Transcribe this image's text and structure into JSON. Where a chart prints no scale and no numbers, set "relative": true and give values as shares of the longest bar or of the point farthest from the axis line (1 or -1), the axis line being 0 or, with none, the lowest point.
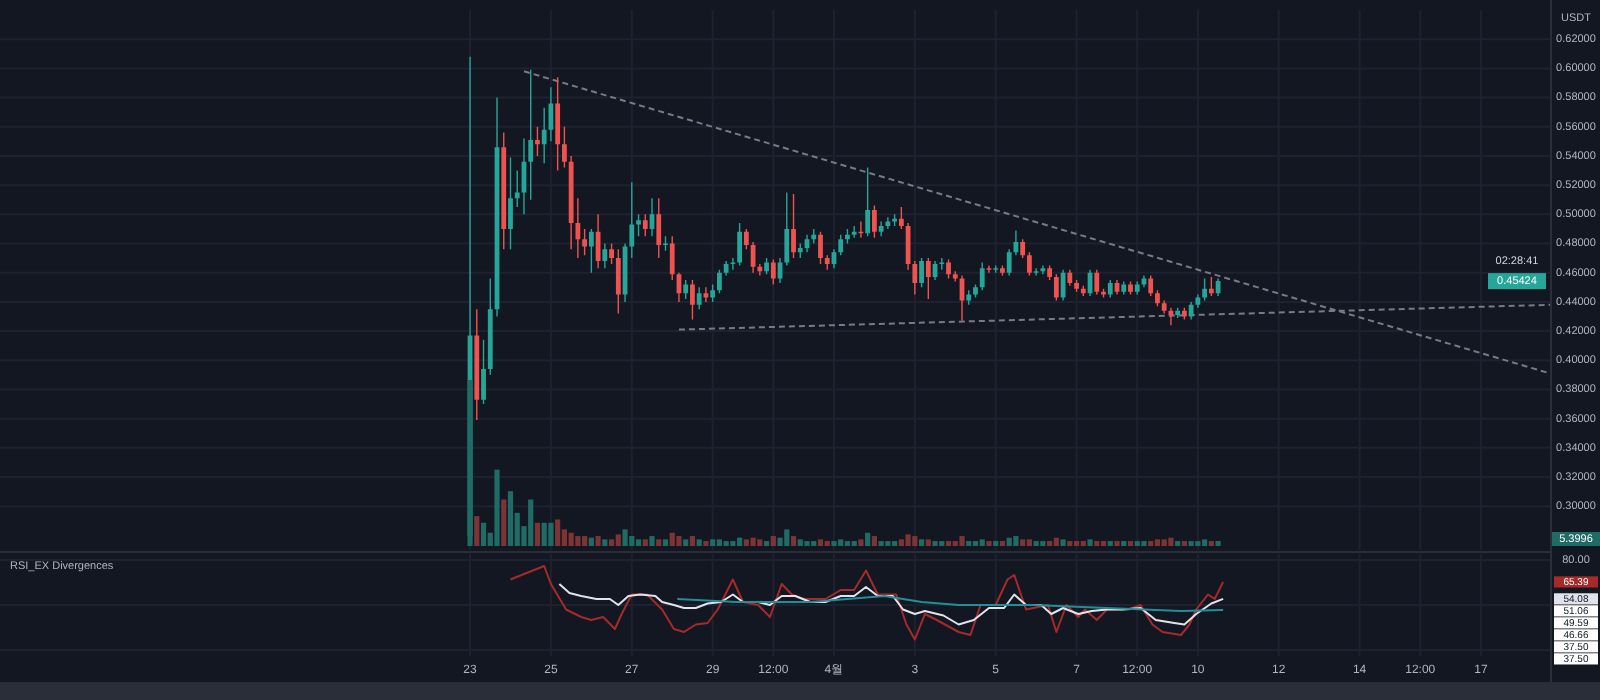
{
  "chart_data": [
    {
      "type": "candlestick",
      "ylabel": "USDT",
      "xlim": [
        "--03-11T09:00",
        "--04-18T17:00"
      ],
      "ylim": [
        0.27,
        0.64
      ],
      "yticks": [
        {
          "value": 0.3,
          "label": "0.30000"
        },
        {
          "value": 0.32,
          "label": "0.32000"
        },
        {
          "value": 0.34,
          "label": "0.34000"
        },
        {
          "value": 0.36,
          "label": "0.36000"
        },
        {
          "value": 0.38,
          "label": "0.38000"
        },
        {
          "value": 0.4,
          "label": "0.40000"
        },
        {
          "value": 0.42,
          "label": "0.42000"
        },
        {
          "value": 0.44,
          "label": "0.44000"
        },
        {
          "value": 0.46,
          "label": "0.46000"
        },
        {
          "value": 0.48,
          "label": "0.48000"
        },
        {
          "value": 0.5,
          "label": "0.50000"
        },
        {
          "value": 0.52,
          "label": "0.52000"
        },
        {
          "value": 0.54,
          "label": "0.54000"
        },
        {
          "value": 0.56,
          "label": "0.56000"
        },
        {
          "value": 0.58,
          "label": "0.58000"
        },
        {
          "value": 0.6,
          "label": "0.60000"
        },
        {
          "value": 0.62,
          "label": "0.62000"
        }
      ],
      "xticks": [
        "--03-23",
        "--03-25",
        "--03-27",
        "--03-29",
        "--03-30T12:00",
        "--04-01",
        "--04-03",
        "--04-05",
        "--04-07",
        "--04-08T12:00",
        "--04-10",
        "--04-12",
        "--04-14",
        "--04-15T12:00",
        "--04-17"
      ],
      "tick_labels": "y",
      "grid": true,
      "x": [
        "--03-23T00:00",
        "--03-23T04:00",
        "--03-23T08:00",
        "--03-23T12:00",
        "--03-23T16:00",
        "--03-23T20:00",
        "--03-24T00:00",
        "--03-24T04:00",
        "--03-24T08:00",
        "--03-24T12:00",
        "--03-24T16:00",
        "--03-24T20:00",
        "--03-25T00:00",
        "--03-25T04:00",
        "--03-25T08:00",
        "--03-25T12:00",
        "--03-25T16:00",
        "--03-25T20:00",
        "--03-26T00:00",
        "--03-26T04:00",
        "--03-26T08:00",
        "--03-26T12:00",
        "--03-26T16:00",
        "--03-26T20:00",
        "--03-27T00:00",
        "--03-27T04:00",
        "--03-27T08:00",
        "--03-27T12:00",
        "--03-27T16:00",
        "--03-27T20:00",
        "--03-28T00:00",
        "--03-28T04:00",
        "--03-28T08:00",
        "--03-28T12:00",
        "--03-28T16:00",
        "--03-28T20:00",
        "--03-29T00:00",
        "--03-29T04:00",
        "--03-29T08:00",
        "--03-29T12:00",
        "--03-29T16:00",
        "--03-29T20:00",
        "--03-30T00:00",
        "--03-30T04:00",
        "--03-30T08:00",
        "--03-30T12:00",
        "--03-30T16:00",
        "--03-30T20:00",
        "--03-31T00:00",
        "--03-31T04:00",
        "--03-31T08:00",
        "--03-31T12:00",
        "--03-31T16:00",
        "--03-31T20:00",
        "--04-01T00:00",
        "--04-01T04:00",
        "--04-01T08:00",
        "--04-01T12:00",
        "--04-01T16:00",
        "--04-01T20:00",
        "--04-02T00:00",
        "--04-02T04:00",
        "--04-02T08:00",
        "--04-02T12:00",
        "--04-02T16:00",
        "--04-02T20:00",
        "--04-03T00:00",
        "--04-03T04:00",
        "--04-03T08:00",
        "--04-03T12:00",
        "--04-03T16:00",
        "--04-03T20:00",
        "--04-04T00:00",
        "--04-04T04:00",
        "--04-04T08:00",
        "--04-04T12:00",
        "--04-04T16:00",
        "--04-04T20:00",
        "--04-05T00:00",
        "--04-05T04:00",
        "--04-05T08:00",
        "--04-05T12:00",
        "--04-05T16:00",
        "--04-05T20:00",
        "--04-06T00:00",
        "--04-06T04:00",
        "--04-06T08:00",
        "--04-06T12:00",
        "--04-06T16:00",
        "--04-06T20:00",
        "--04-07T00:00",
        "--04-07T04:00",
        "--04-07T08:00",
        "--04-07T12:00",
        "--04-07T16:00",
        "--04-07T20:00",
        "--04-08T00:00",
        "--04-08T04:00",
        "--04-08T08:00",
        "--04-08T12:00",
        "--04-08T16:00",
        "--04-08T20:00",
        "--04-09T00:00",
        "--04-09T04:00",
        "--04-09T08:00",
        "--04-09T12:00",
        "--04-09T16:00",
        "--04-09T20:00",
        "--04-10T00:00",
        "--04-10T04:00",
        "--04-10T08:00",
        "--04-10T12:00"
      ],
      "ohlc": [
        [
          0.28,
          0.608,
          0.277,
          0.417
        ],
        [
          0.417,
          0.435,
          0.359,
          0.373
        ],
        [
          0.373,
          0.414,
          0.37,
          0.394
        ],
        [
          0.394,
          0.456,
          0.39,
          0.435
        ],
        [
          0.435,
          0.58,
          0.43,
          0.546
        ],
        [
          0.546,
          0.556,
          0.476,
          0.49
        ],
        [
          0.49,
          0.539,
          0.476,
          0.511
        ],
        [
          0.511,
          0.53,
          0.505,
          0.515
        ],
        [
          0.515,
          0.552,
          0.5,
          0.536
        ],
        [
          0.536,
          0.599,
          0.51,
          0.551
        ],
        [
          0.551,
          0.56,
          0.54,
          0.548
        ],
        [
          0.548,
          0.573,
          0.535,
          0.558
        ],
        [
          0.558,
          0.587,
          0.55,
          0.576
        ],
        [
          0.576,
          0.594,
          0.53,
          0.548
        ],
        [
          0.548,
          0.56,
          0.532,
          0.536
        ],
        [
          0.536,
          0.54,
          0.476,
          0.494
        ],
        [
          0.494,
          0.511,
          0.47,
          0.483
        ],
        [
          0.483,
          0.49,
          0.472,
          0.478
        ],
        [
          0.478,
          0.49,
          0.46,
          0.488
        ],
        [
          0.488,
          0.5,
          0.463,
          0.468
        ],
        [
          0.468,
          0.48,
          0.463,
          0.476
        ],
        [
          0.476,
          0.48,
          0.466,
          0.47
        ],
        [
          0.47,
          0.476,
          0.432,
          0.445
        ],
        [
          0.445,
          0.48,
          0.44,
          0.478
        ],
        [
          0.478,
          0.522,
          0.47,
          0.493
        ],
        [
          0.493,
          0.5,
          0.485,
          0.496
        ],
        [
          0.496,
          0.5,
          0.485,
          0.49
        ],
        [
          0.49,
          0.511,
          0.485,
          0.5
        ],
        [
          0.5,
          0.511,
          0.47,
          0.479
        ],
        [
          0.479,
          0.485,
          0.475,
          0.48
        ],
        [
          0.48,
          0.485,
          0.455,
          0.459
        ],
        [
          0.459,
          0.46,
          0.44,
          0.446
        ],
        [
          0.446,
          0.455,
          0.442,
          0.452
        ],
        [
          0.452,
          0.455,
          0.428,
          0.438
        ],
        [
          0.438,
          0.45,
          0.435,
          0.446
        ],
        [
          0.446,
          0.45,
          0.44,
          0.443
        ],
        [
          0.443,
          0.452,
          0.44,
          0.448
        ],
        [
          0.448,
          0.462,
          0.446,
          0.46
        ],
        [
          0.46,
          0.468,
          0.458,
          0.466
        ],
        [
          0.466,
          0.47,
          0.462,
          0.467
        ],
        [
          0.467,
          0.494,
          0.465,
          0.488
        ],
        [
          0.488,
          0.49,
          0.476,
          0.479
        ],
        [
          0.479,
          0.481,
          0.46,
          0.464
        ],
        [
          0.464,
          0.466,
          0.458,
          0.461
        ],
        [
          0.461,
          0.47,
          0.459,
          0.467
        ],
        [
          0.467,
          0.469,
          0.452,
          0.456
        ],
        [
          0.456,
          0.47,
          0.453,
          0.467
        ],
        [
          0.467,
          0.515,
          0.465,
          0.49
        ],
        [
          0.49,
          0.514,
          0.47,
          0.474
        ],
        [
          0.474,
          0.48,
          0.47,
          0.477
        ],
        [
          0.477,
          0.486,
          0.474,
          0.483
        ],
        [
          0.483,
          0.49,
          0.48,
          0.486
        ],
        [
          0.486,
          0.488,
          0.466,
          0.47
        ],
        [
          0.47,
          0.472,
          0.462,
          0.466
        ],
        [
          0.466,
          0.476,
          0.463,
          0.474
        ],
        [
          0.474,
          0.486,
          0.472,
          0.483
        ],
        [
          0.483,
          0.49,
          0.48,
          0.486
        ],
        [
          0.486,
          0.492,
          0.484,
          0.488
        ],
        [
          0.488,
          0.495,
          0.484,
          0.487
        ],
        [
          0.487,
          0.532,
          0.485,
          0.503
        ],
        [
          0.503,
          0.506,
          0.484,
          0.488
        ],
        [
          0.488,
          0.495,
          0.485,
          0.492
        ],
        [
          0.492,
          0.498,
          0.49,
          0.495
        ],
        [
          0.495,
          0.5,
          0.492,
          0.497
        ],
        [
          0.497,
          0.505,
          0.49,
          0.492
        ],
        [
          0.492,
          0.494,
          0.462,
          0.466
        ],
        [
          0.466,
          0.468,
          0.445,
          0.453
        ],
        [
          0.453,
          0.47,
          0.45,
          0.468
        ],
        [
          0.468,
          0.47,
          0.442,
          0.457
        ],
        [
          0.457,
          0.468,
          0.455,
          0.466
        ],
        [
          0.466,
          0.47,
          0.462,
          0.467
        ],
        [
          0.467,
          0.469,
          0.456,
          0.459
        ],
        [
          0.459,
          0.461,
          0.454,
          0.456
        ],
        [
          0.456,
          0.458,
          0.427,
          0.441
        ],
        [
          0.441,
          0.448,
          0.438,
          0.445
        ],
        [
          0.445,
          0.452,
          0.443,
          0.45
        ],
        [
          0.45,
          0.467,
          0.448,
          0.463
        ],
        [
          0.463,
          0.465,
          0.46,
          0.462
        ],
        [
          0.462,
          0.465,
          0.46,
          0.463
        ],
        [
          0.463,
          0.465,
          0.458,
          0.46
        ],
        [
          0.46,
          0.476,
          0.458,
          0.474
        ],
        [
          0.474,
          0.489,
          0.472,
          0.481
        ],
        [
          0.481,
          0.483,
          0.47,
          0.472
        ],
        [
          0.472,
          0.474,
          0.458,
          0.46
        ],
        [
          0.46,
          0.463,
          0.458,
          0.461
        ],
        [
          0.461,
          0.465,
          0.459,
          0.463
        ],
        [
          0.463,
          0.465,
          0.455,
          0.457
        ],
        [
          0.457,
          0.459,
          0.441,
          0.443
        ],
        [
          0.443,
          0.462,
          0.441,
          0.46
        ],
        [
          0.46,
          0.462,
          0.451,
          0.453
        ],
        [
          0.453,
          0.455,
          0.447,
          0.449
        ],
        [
          0.449,
          0.451,
          0.444,
          0.446
        ],
        [
          0.446,
          0.462,
          0.444,
          0.46
        ],
        [
          0.46,
          0.462,
          0.445,
          0.447
        ],
        [
          0.447,
          0.449,
          0.443,
          0.445
        ],
        [
          0.445,
          0.455,
          0.443,
          0.453
        ],
        [
          0.453,
          0.455,
          0.445,
          0.447
        ],
        [
          0.447,
          0.454,
          0.445,
          0.452
        ],
        [
          0.452,
          0.454,
          0.445,
          0.447
        ],
        [
          0.447,
          0.454,
          0.445,
          0.452
        ],
        [
          0.452,
          0.458,
          0.45,
          0.456
        ],
        [
          0.456,
          0.458,
          0.444,
          0.446
        ],
        [
          0.446,
          0.448,
          0.437,
          0.439
        ],
        [
          0.439,
          0.441,
          0.432,
          0.434
        ],
        [
          0.434,
          0.436,
          0.424,
          0.431
        ],
        [
          0.431,
          0.436,
          0.429,
          0.434
        ],
        [
          0.434,
          0.436,
          0.428,
          0.43
        ],
        [
          0.43,
          0.44,
          0.428,
          0.438
        ],
        [
          0.438,
          0.445,
          0.436,
          0.443
        ],
        [
          0.443,
          0.456,
          0.441,
          0.449
        ],
        [
          0.449,
          0.457,
          0.444,
          0.446
        ],
        [
          0.446,
          0.456,
          0.444,
          0.45424
        ]
      ],
      "colors": [
        "#26a69a",
        "#ef5350",
        "#26a69a",
        "#26a69a",
        "#26a69a",
        "#ef5350",
        "#26a69a",
        "#26a69a",
        "#26a69a",
        "#26a69a",
        "#ef5350",
        "#26a69a",
        "#26a69a",
        "#ef5350",
        "#ef5350",
        "#ef5350",
        "#ef5350",
        "#ef5350",
        "#26a69a",
        "#ef5350",
        "#26a69a",
        "#ef5350",
        "#ef5350",
        "#26a69a",
        "#26a69a",
        "#26a69a",
        "#ef5350",
        "#26a69a",
        "#ef5350",
        "#26a69a",
        "#ef5350",
        "#ef5350",
        "#26a69a",
        "#ef5350",
        "#26a69a",
        "#ef5350",
        "#26a69a",
        "#26a69a",
        "#26a69a",
        "#26a69a",
        "#26a69a",
        "#ef5350",
        "#ef5350",
        "#ef5350",
        "#26a69a",
        "#ef5350",
        "#26a69a",
        "#26a69a",
        "#ef5350",
        "#26a69a",
        "#26a69a",
        "#26a69a",
        "#ef5350",
        "#ef5350",
        "#26a69a",
        "#26a69a",
        "#26a69a",
        "#26a69a",
        "#ef5350",
        "#26a69a",
        "#ef5350",
        "#26a69a",
        "#26a69a",
        "#26a69a",
        "#ef5350",
        "#ef5350",
        "#ef5350",
        "#26a69a",
        "#ef5350",
        "#26a69a",
        "#26a69a",
        "#ef5350",
        "#ef5350",
        "#ef5350",
        "#26a69a",
        "#26a69a",
        "#26a69a",
        "#ef5350",
        "#26a69a",
        "#ef5350",
        "#26a69a",
        "#26a69a",
        "#ef5350",
        "#ef5350",
        "#26a69a",
        "#26a69a",
        "#ef5350",
        "#ef5350",
        "#26a69a",
        "#ef5350",
        "#ef5350",
        "#ef5350",
        "#26a69a",
        "#ef5350",
        "#ef5350",
        "#26a69a",
        "#ef5350",
        "#26a69a",
        "#ef5350",
        "#26a69a",
        "#26a69a",
        "#ef5350",
        "#ef5350",
        "#ef5350",
        "#ef5350",
        "#26a69a",
        "#ef5350",
        "#26a69a",
        "#26a69a",
        "#26a69a",
        "#ef5350",
        "#26a69a"
      ],
      "series": [
        {
          "type": "line",
          "line_style": "dashed",
          "color": "#787b86",
          "x": [
            "--03-24T08:00",
            "--04-18T17:00"
          ],
          "values": [
            0.598,
            0.391
          ]
        },
        {
          "type": "line",
          "line_style": "dashed",
          "color": "#787b86",
          "x": [
            "--03-28T04:00",
            "--04-18T17:00"
          ],
          "values": [
            0.421,
            0.438
          ]
        }
      ],
      "annotations": [
        "0.45424",
        "02:28:41"
      ]
    },
    {
      "type": "bar",
      "relative": true,
      "xlim": [
        "--03-11T09:00",
        "--04-18T17:00"
      ],
      "tick_labels": false,
      "x": [
        "--03-23T00:00",
        "--03-23T04:00",
        "--03-23T08:00",
        "--03-23T12:00",
        "--03-23T16:00",
        "--03-23T20:00",
        "--03-24T00:00",
        "--03-24T04:00",
        "--03-24T08:00",
        "--03-24T12:00",
        "--03-24T16:00",
        "--03-24T20:00",
        "--03-25T00:00",
        "--03-25T04:00",
        "--03-25T08:00",
        "--03-25T12:00",
        "--03-25T16:00",
        "--03-25T20:00",
        "--03-26T00:00",
        "--03-26T04:00",
        "--03-26T08:00",
        "--03-26T12:00",
        "--03-26T16:00",
        "--03-26T20:00",
        "--03-27T00:00",
        "--03-27T04:00",
        "--03-27T08:00",
        "--03-27T12:00",
        "--03-27T16:00",
        "--03-27T20:00",
        "--03-28T00:00",
        "--03-28T04:00",
        "--03-28T08:00",
        "--03-28T12:00",
        "--03-28T16:00",
        "--03-28T20:00",
        "--03-29T00:00",
        "--03-29T04:00",
        "--03-29T08:00",
        "--03-29T12:00",
        "--03-29T16:00",
        "--03-29T20:00",
        "--03-30T00:00",
        "--03-30T04:00",
        "--03-30T08:00",
        "--03-30T12:00",
        "--03-30T16:00",
        "--03-30T20:00",
        "--03-31T00:00",
        "--03-31T04:00",
        "--03-31T08:00",
        "--03-31T12:00",
        "--03-31T16:00",
        "--03-31T20:00",
        "--04-01T00:00",
        "--04-01T04:00",
        "--04-01T08:00",
        "--04-01T12:00",
        "--04-01T16:00",
        "--04-01T20:00",
        "--04-02T00:00",
        "--04-02T04:00",
        "--04-02T08:00",
        "--04-02T12:00",
        "--04-02T16:00",
        "--04-02T20:00",
        "--04-03T00:00",
        "--04-03T04:00",
        "--04-03T08:00",
        "--04-03T12:00",
        "--04-03T16:00",
        "--04-03T20:00",
        "--04-04T00:00",
        "--04-04T04:00",
        "--04-04T08:00",
        "--04-04T12:00",
        "--04-04T16:00",
        "--04-04T20:00",
        "--04-05T00:00",
        "--04-05T04:00",
        "--04-05T08:00",
        "--04-05T12:00",
        "--04-05T16:00",
        "--04-05T20:00",
        "--04-06T00:00",
        "--04-06T04:00",
        "--04-06T08:00",
        "--04-06T12:00",
        "--04-06T16:00",
        "--04-06T20:00",
        "--04-07T00:00",
        "--04-07T04:00",
        "--04-07T08:00",
        "--04-07T12:00",
        "--04-07T16:00",
        "--04-07T20:00",
        "--04-08T00:00",
        "--04-08T04:00",
        "--04-08T08:00",
        "--04-08T12:00",
        "--04-08T16:00",
        "--04-08T20:00",
        "--04-09T00:00",
        "--04-09T04:00",
        "--04-09T08:00",
        "--04-09T12:00",
        "--04-09T16:00",
        "--04-09T20:00",
        "--04-10T00:00",
        "--04-10T04:00",
        "--04-10T08:00",
        "--04-10T12:00"
      ],
      "values": [
        1,
        0.18,
        0.14,
        0.08,
        0.46,
        0.28,
        0.33,
        0.2,
        0.12,
        0.28,
        0.14,
        0.14,
        0.14,
        0.16,
        0.1,
        0.08,
        0.06,
        0.06,
        0.05,
        0.06,
        0.04,
        0.04,
        0.07,
        0.1,
        0.06,
        0.04,
        0.04,
        0.06,
        0.04,
        0.04,
        0.08,
        0.06,
        0.04,
        0.06,
        0.04,
        0.03,
        0.04,
        0.04,
        0.03,
        0.03,
        0.05,
        0.04,
        0.05,
        0.04,
        0.03,
        0.06,
        0.05,
        0.1,
        0.06,
        0.04,
        0.03,
        0.03,
        0.04,
        0.03,
        0.03,
        0.04,
        0.03,
        0.03,
        0.04,
        0.08,
        0.06,
        0.03,
        0.03,
        0.03,
        0.04,
        0.07,
        0.06,
        0.04,
        0.04,
        0.03,
        0.03,
        0.03,
        0.03,
        0.06,
        0.03,
        0.03,
        0.04,
        0.03,
        0.03,
        0.03,
        0.05,
        0.06,
        0.04,
        0.04,
        0.03,
        0.03,
        0.03,
        0.05,
        0.04,
        0.03,
        0.03,
        0.03,
        0.04,
        0.03,
        0.03,
        0.03,
        0.03,
        0.03,
        0.03,
        0.03,
        0.03,
        0.03,
        0.04,
        0.04,
        0.05,
        0.03,
        0.03,
        0.03,
        0.03,
        0.04,
        0.03,
        0.03
      ],
      "colors": [
        "#1f6b66",
        "#7d3434",
        "#1f6b66",
        "#1f6b66",
        "#1f6b66",
        "#7d3434",
        "#1f6b66",
        "#1f6b66",
        "#1f6b66",
        "#1f6b66",
        "#7d3434",
        "#1f6b66",
        "#1f6b66",
        "#7d3434",
        "#7d3434",
        "#7d3434",
        "#7d3434",
        "#7d3434",
        "#1f6b66",
        "#7d3434",
        "#1f6b66",
        "#7d3434",
        "#7d3434",
        "#1f6b66",
        "#1f6b66",
        "#1f6b66",
        "#7d3434",
        "#1f6b66",
        "#7d3434",
        "#1f6b66",
        "#7d3434",
        "#7d3434",
        "#1f6b66",
        "#7d3434",
        "#1f6b66",
        "#7d3434",
        "#1f6b66",
        "#1f6b66",
        "#1f6b66",
        "#1f6b66",
        "#1f6b66",
        "#7d3434",
        "#7d3434",
        "#7d3434",
        "#1f6b66",
        "#7d3434",
        "#1f6b66",
        "#1f6b66",
        "#7d3434",
        "#1f6b66",
        "#1f6b66",
        "#1f6b66",
        "#7d3434",
        "#7d3434",
        "#1f6b66",
        "#1f6b66",
        "#1f6b66",
        "#1f6b66",
        "#7d3434",
        "#1f6b66",
        "#7d3434",
        "#1f6b66",
        "#1f6b66",
        "#1f6b66",
        "#7d3434",
        "#7d3434",
        "#7d3434",
        "#1f6b66",
        "#7d3434",
        "#1f6b66",
        "#1f6b66",
        "#7d3434",
        "#7d3434",
        "#7d3434",
        "#1f6b66",
        "#1f6b66",
        "#1f6b66",
        "#7d3434",
        "#1f6b66",
        "#7d3434",
        "#1f6b66",
        "#1f6b66",
        "#7d3434",
        "#7d3434",
        "#1f6b66",
        "#1f6b66",
        "#7d3434",
        "#7d3434",
        "#1f6b66",
        "#7d3434",
        "#7d3434",
        "#7d3434",
        "#1f6b66",
        "#7d3434",
        "#7d3434",
        "#1f6b66",
        "#7d3434",
        "#1f6b66",
        "#7d3434",
        "#1f6b66",
        "#1f6b66",
        "#7d3434",
        "#7d3434",
        "#7d3434",
        "#7d3434",
        "#1f6b66",
        "#7d3434",
        "#1f6b66",
        "#1f6b66",
        "#1f6b66",
        "#7d3434",
        "#1f6b66"
      ],
      "annotations": [
        "5.3996"
      ]
    },
    {
      "type": "line",
      "title": "RSI_EX Divergences",
      "xlim": [
        "--03-11T09:00",
        "--04-18T17:00"
      ],
      "ylim": [
        16,
        84
      ],
      "grid": true,
      "yticks": [
        {
          "value": 80,
          "label": "80.00"
        },
        {
          "value": 65.39,
          "label": "65.39"
        },
        {
          "value": 54.08,
          "label": "54.08"
        },
        {
          "value": 50,
          "label": null
        },
        {
          "value": 20,
          "label": null
        }
      ],
      "xticks": [
        {
          "value": "--03-23",
          "label": "23"
        },
        {
          "value": "--03-25",
          "label": "25"
        },
        {
          "value": "--03-27",
          "label": "27"
        },
        {
          "value": "--03-29",
          "label": "29"
        },
        {
          "value": "--03-30T12:00",
          "label": "12:00"
        },
        {
          "value": "--04-01",
          "label": "4월"
        },
        {
          "value": "--04-03",
          "label": "3"
        },
        {
          "value": "--04-05",
          "label": "5"
        },
        {
          "value": "--04-07",
          "label": "7"
        },
        {
          "value": "--04-08T12:00",
          "label": "12:00"
        },
        {
          "value": "--04-10",
          "label": "10"
        },
        {
          "value": "--04-12",
          "label": "12"
        },
        {
          "value": "--04-14",
          "label": "14"
        },
        {
          "value": "--04-15T12:00",
          "label": "12:00"
        },
        {
          "value": "--04-17",
          "label": "17"
        }
      ],
      "series": [
        {
          "color": "#a52a2a",
          "x": [
            "--03-24T00:00",
            "--03-24T11:00",
            "--03-24T20:00",
            "--03-25T00:00",
            "--03-25T09:00",
            "--03-25T18:00",
            "--03-26T00:00",
            "--03-26T07:00",
            "--03-26T14:00",
            "--03-26T18:00",
            "--03-27T00:00",
            "--03-27T09:00",
            "--03-27T18:00",
            "--03-28T01:00",
            "--03-28T07:00",
            "--03-28T14:00",
            "--03-28T21:00",
            "--03-29T03:00",
            "--03-29T12:00",
            "--03-29T18:00",
            "--03-30T03:00",
            "--03-30T10:00",
            "--03-30T17:00",
            "--03-30T23:00",
            "--03-31T06:00",
            "--03-31T19:00",
            "--04-01T04:00",
            "--04-01T12:00",
            "--04-01T19:00",
            "--04-02T02:00",
            "--04-02T13:00",
            "--04-02T19:00",
            "--04-03T00:00",
            "--04-03T06:00",
            "--04-03T13:00",
            "--04-04T02:00",
            "--04-04T09:00",
            "--04-04T15:00",
            "--04-05T00:00",
            "--04-05T07:00",
            "--04-05T11:00",
            "--04-05T18:00",
            "--04-06T07:00",
            "--04-06T12:00",
            "--04-06T18:00",
            "--04-07T01:00",
            "--04-07T05:00",
            "--04-07T12:00",
            "--04-07T18:00",
            "--04-08T07:00",
            "--04-08T14:00",
            "--04-08T21:00",
            "--04-09T03:00",
            "--04-09T14:00",
            "--04-09T19:00",
            "--04-09T23:00",
            "--04-10T06:00",
            "--04-10T10:00",
            "--04-10T15:00"
          ],
          "values": [
            67,
            72,
            76,
            64,
            47,
            42,
            40,
            42,
            34,
            44,
            57,
            57,
            47,
            34,
            32,
            37,
            38,
            47,
            67,
            52,
            50,
            42,
            64,
            57,
            54,
            54,
            60,
            60,
            73,
            57,
            57,
            37,
            27,
            44,
            40,
            32,
            30,
            50,
            50,
            67,
            70,
            47,
            50,
            32,
            50,
            42,
            47,
            40,
            47,
            47,
            50,
            37,
            32,
            30,
            37,
            47,
            57,
            54,
            65.39
          ]
        },
        {
          "color": "#e0e3eb",
          "x": [
            "--03-25T05:00",
            "--03-25T11:00",
            "--03-25T18:00",
            "--03-26T03:00",
            "--03-26T11:00",
            "--03-26T16:00",
            "--03-26T22:00",
            "--03-27T05:00",
            "--03-27T14:00",
            "--03-27T18:00",
            "--03-28T01:00",
            "--03-28T07:00",
            "--03-28T14:00",
            "--03-28T21:00",
            "--03-29T05:00",
            "--03-29T12:00",
            "--03-29T18:00",
            "--03-30T03:00",
            "--03-30T10:00",
            "--03-30T17:00",
            "--03-31T01:00",
            "--03-31T10:00",
            "--03-31T19:00",
            "--04-01T04:00",
            "--04-01T12:00",
            "--04-01T19:00",
            "--04-02T02:00",
            "--04-02T11:00",
            "--04-02T17:00",
            "--04-03T00:00",
            "--04-03T06:00",
            "--04-03T17:00",
            "--04-04T02:00",
            "--04-04T11:00",
            "--04-04T20:00",
            "--04-05T05:00",
            "--04-05T11:00",
            "--04-05T18:00",
            "--04-06T03:00",
            "--04-06T09:00",
            "--04-06T16:00",
            "--04-07T01:00",
            "--04-07T09:00",
            "--04-07T18:00",
            "--04-08T03:00",
            "--04-08T14:00",
            "--04-08T23:00",
            "--04-09T10:00",
            "--04-09T16:00",
            "--04-09T23:00",
            "--04-10T08:00",
            "--04-10T15:00"
          ],
          "values": [
            64,
            58,
            56,
            54,
            54,
            50,
            56,
            57,
            56,
            52,
            50,
            48,
            48,
            51,
            52,
            57,
            52,
            52,
            50,
            56,
            56,
            52,
            52,
            56,
            56,
            62,
            56,
            56,
            47,
            44,
            46,
            43,
            37,
            40,
            48,
            48,
            57,
            50,
            50,
            44,
            48,
            44,
            46,
            47,
            47,
            48,
            40,
            38,
            37,
            44,
            51,
            54.08
          ]
        },
        {
          "color": "#1f8f9a",
          "x": [
            "--03-28T03:00",
            "--03-29T14:00",
            "--03-31T10:00",
            "--04-02T06:00",
            "--04-03T04:00",
            "--04-04T02:00",
            "--04-05T22:00",
            "--04-07T18:00",
            "--04-09T14:00",
            "--04-10T15:00"
          ],
          "values": [
            54,
            52,
            52,
            56,
            52,
            50,
            50,
            48,
            46,
            46.66
          ]
        }
      ],
      "annotations": [
        "51.06",
        "49.59",
        "46.66",
        "37.50",
        "37.50"
      ]
    }
  ]
}
